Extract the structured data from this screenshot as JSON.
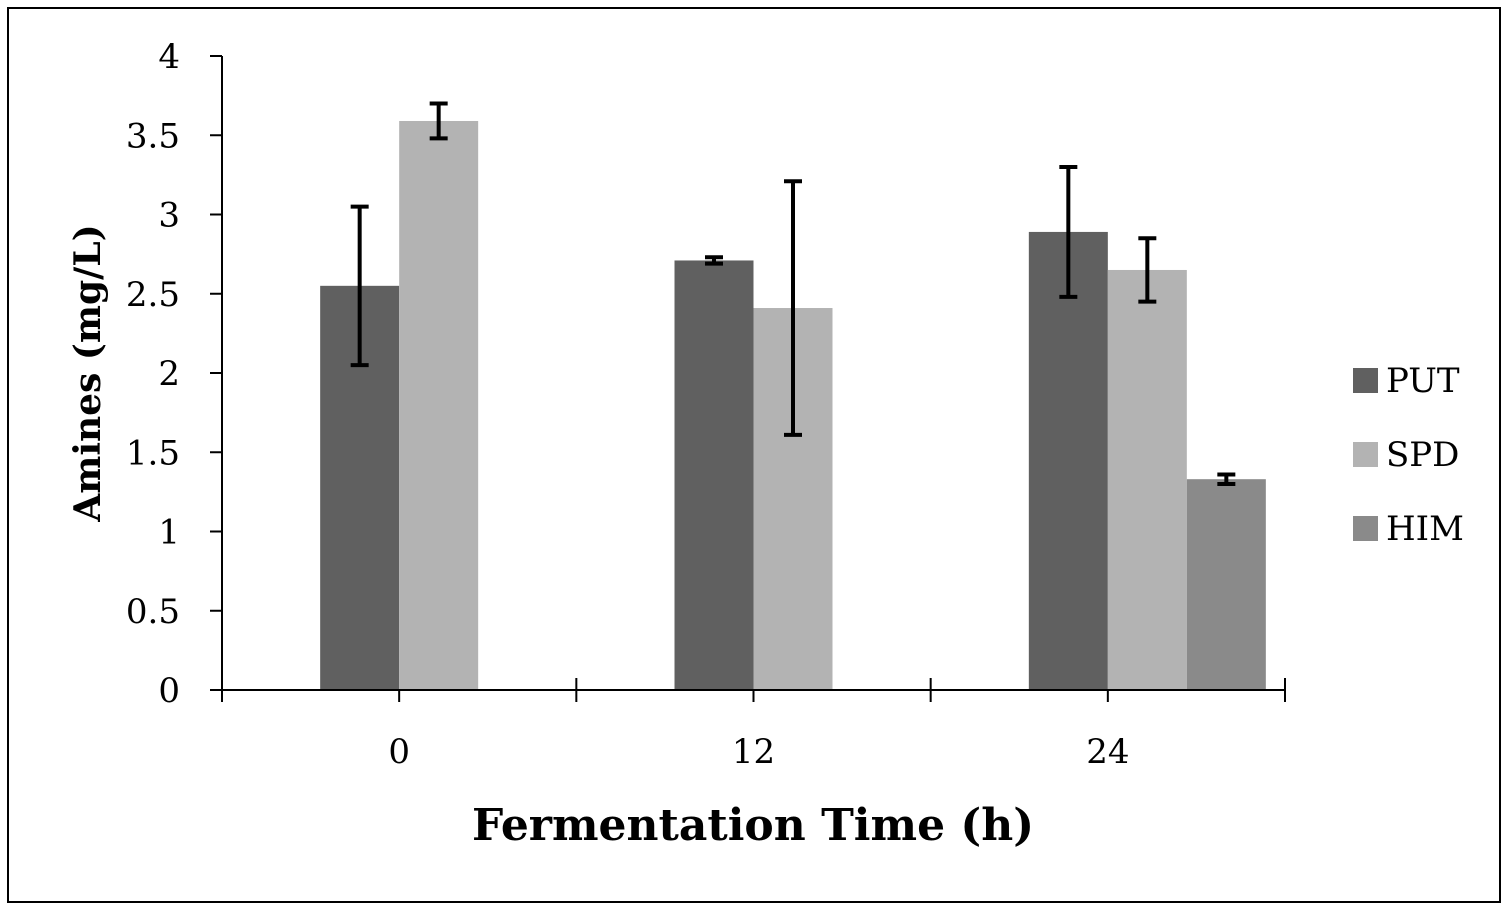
{
  "chart_data": {
    "type": "bar",
    "title": "",
    "xlabel": "Fermentation Time (h)",
    "ylabel": "Amines (mg/L)",
    "categories": [
      "0",
      "12",
      "24"
    ],
    "ylim": [
      0,
      4
    ],
    "yticks": [
      "0",
      "0.5",
      "1",
      "1.5",
      "2",
      "2.5",
      "3",
      "3.5",
      "4"
    ],
    "legend_position": "right",
    "series": [
      {
        "name": "PUT",
        "color": "#606060",
        "values": [
          2.55,
          2.71,
          2.89
        ],
        "errors": [
          0.5,
          0.02,
          0.41
        ]
      },
      {
        "name": "SPD",
        "color": "#b3b3b3",
        "values": [
          3.59,
          2.41,
          2.65
        ],
        "errors": [
          0.11,
          0.8,
          0.2
        ]
      },
      {
        "name": "HIM",
        "color": "#8a8a8a",
        "values": [
          null,
          null,
          1.33
        ],
        "errors": [
          null,
          null,
          0.03
        ]
      }
    ]
  }
}
